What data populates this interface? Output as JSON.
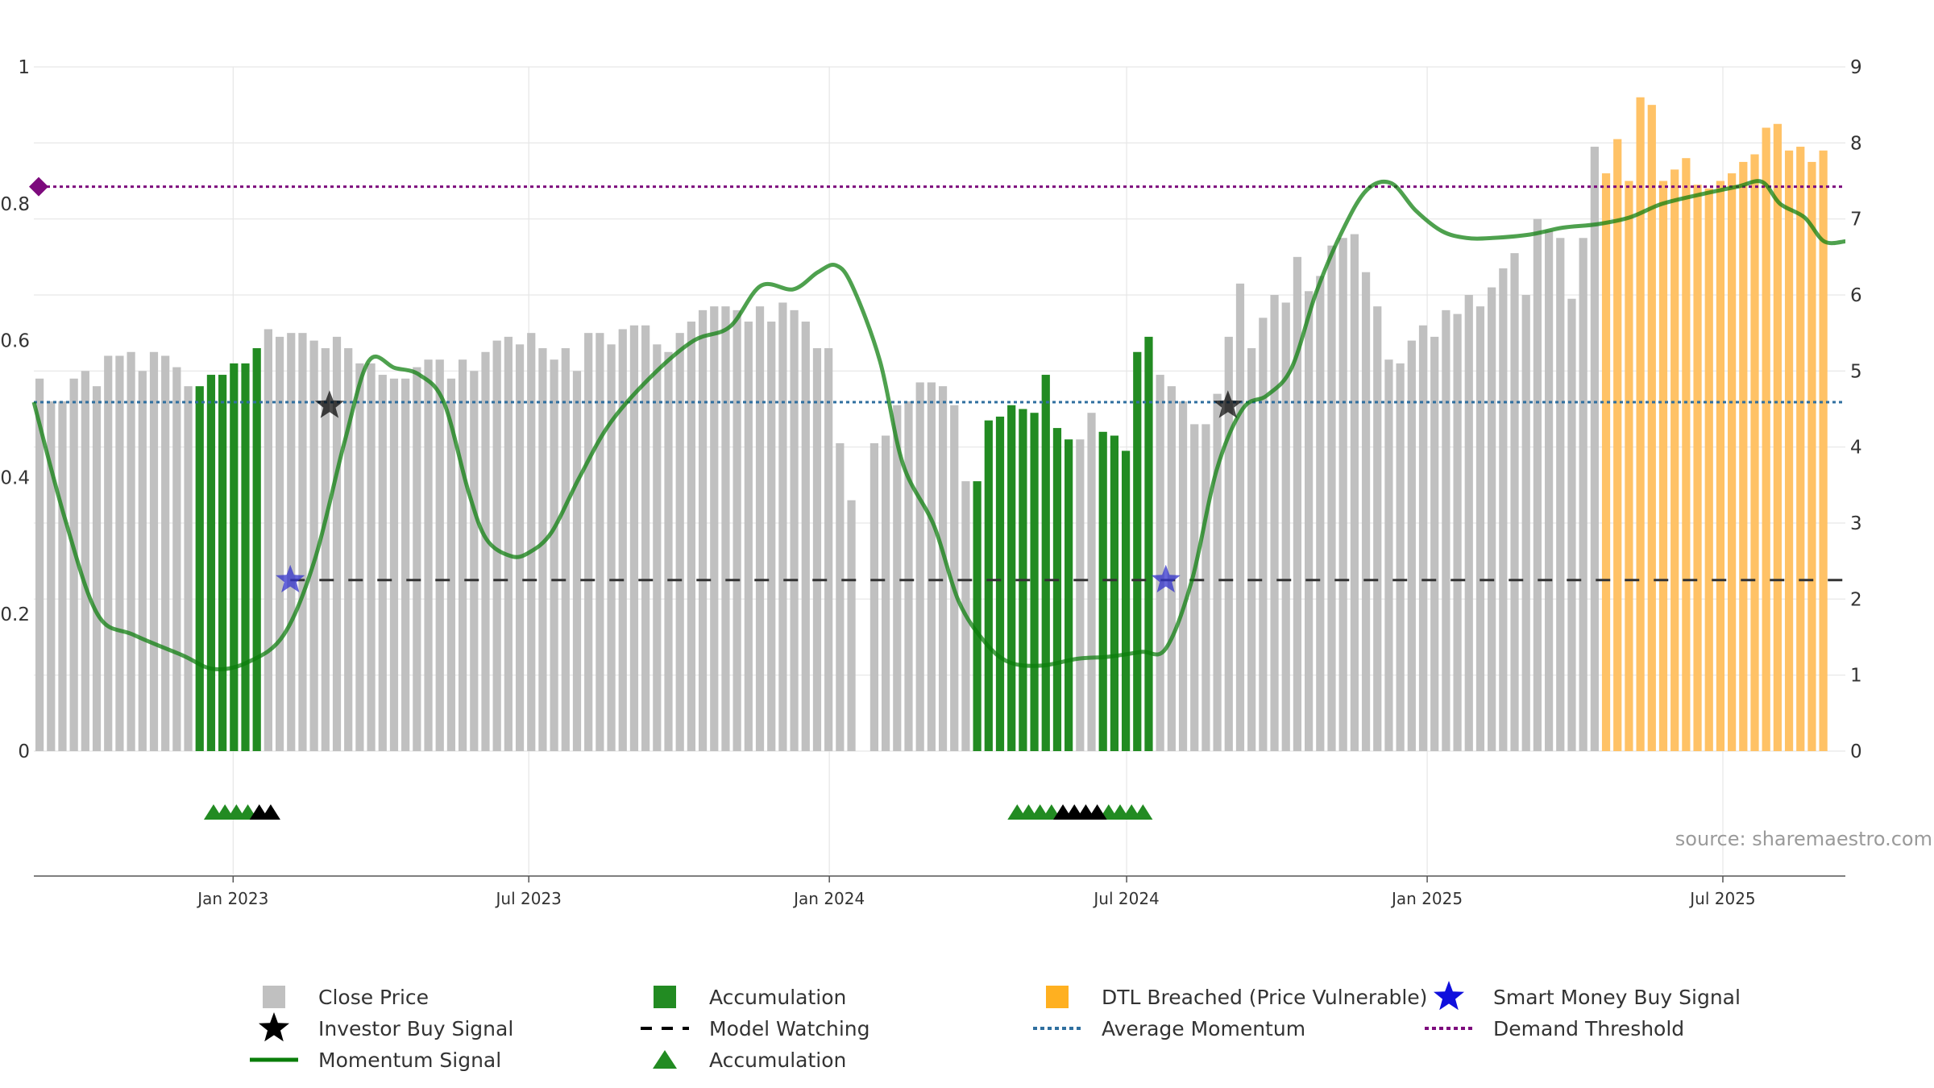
{
  "colors": {
    "close": "#c0c0c0",
    "accum": "#228b22",
    "dtl": "#ffc266",
    "momentum": "#0a7d0a",
    "avg": "#2f6f9f",
    "demand": "#7d0a7d",
    "watch": "#000000",
    "smart": "#3333cc",
    "investor": "#000000",
    "grid": "#e6e6e6"
  },
  "source": "source: sharemaestro.com",
  "chart_data": {
    "type": "bar",
    "left_axis": {
      "ylim": [
        0,
        1
      ],
      "ticks": [
        "0",
        "0.2",
        "0.4",
        "0.6",
        "0.8",
        "1"
      ]
    },
    "right_axis": {
      "ylim": [
        0,
        9
      ],
      "ticks": [
        "0",
        "1",
        "2",
        "3",
        "4",
        "5",
        "6",
        "7",
        "8",
        "9"
      ]
    },
    "x_axis": {
      "start": "2022-09-01",
      "end": "2025-09-14",
      "ticks": [
        {
          "label": "Jan 2023",
          "date": "2023-01-01"
        },
        {
          "label": "Jul 2023",
          "date": "2023-07-01"
        },
        {
          "label": "Jan 2024",
          "date": "2024-01-01"
        },
        {
          "label": "Jul 2024",
          "date": "2024-07-01"
        },
        {
          "label": "Jan 2025",
          "date": "2025-01-01"
        },
        {
          "label": "Jul 2025",
          "date": "2025-07-01"
        }
      ]
    },
    "bar_series": {
      "name": "Close Price",
      "start": "2022-09-01",
      "interval_days": 7,
      "axis": "right",
      "values": [
        4.9,
        4.6,
        4.6,
        4.9,
        5.0,
        4.8,
        5.2,
        5.2,
        5.25,
        5.0,
        5.25,
        5.2,
        5.05,
        4.8,
        4.8,
        4.95,
        4.95,
        5.1,
        5.1,
        5.3,
        5.55,
        5.45,
        5.5,
        5.5,
        5.4,
        5.3,
        5.45,
        5.3,
        5.1,
        5.1,
        4.95,
        4.9,
        4.9,
        5.05,
        5.15,
        5.15,
        4.9,
        5.15,
        5.0,
        5.25,
        5.4,
        5.45,
        5.35,
        5.5,
        5.3,
        5.15,
        5.3,
        5.0,
        5.5,
        5.5,
        5.35,
        5.55,
        5.6,
        5.6,
        5.35,
        5.25,
        5.5,
        5.65,
        5.8,
        5.85,
        5.85,
        5.8,
        5.65,
        5.85,
        5.65,
        5.9,
        5.8,
        5.65,
        5.3,
        5.3,
        4.05,
        3.3,
        0,
        4.05,
        4.15,
        4.55,
        4.6,
        4.85,
        4.85,
        4.8,
        4.55,
        3.55,
        3.55,
        4.35,
        4.4,
        4.55,
        4.5,
        4.45,
        4.95,
        4.25,
        4.1,
        4.1,
        4.45,
        4.2,
        4.15,
        3.95,
        5.25,
        5.45,
        4.95,
        4.8,
        4.6,
        4.3,
        4.3,
        4.7,
        5.45,
        6.15,
        5.3,
        5.7,
        6.0,
        5.9,
        6.5,
        6.05,
        6.25,
        6.65,
        6.75,
        6.8,
        6.3,
        5.85,
        5.15,
        5.1,
        5.4,
        5.6,
        5.45,
        5.8,
        5.75,
        6.0,
        5.85,
        6.1,
        6.35,
        6.55,
        6.0,
        7.0,
        6.85,
        6.75,
        5.95,
        6.75,
        7.95,
        7.6,
        8.05,
        7.5,
        8.6,
        8.5,
        7.5,
        7.65,
        7.8,
        7.45,
        7.4,
        7.5,
        7.6,
        7.75,
        7.85,
        8.2,
        8.25,
        7.9,
        7.95,
        7.75,
        7.9
      ],
      "colors_by_index": {
        "accumulation": [
          [
            14,
            19
          ],
          [
            82,
            90
          ],
          [
            93,
            97
          ]
        ],
        "dtl": [
          [
            137,
            157
          ]
        ]
      }
    },
    "momentum": {
      "name": "Momentum Signal",
      "axis": "left",
      "points": [
        [
          "2022-09-01",
          0.51
        ],
        [
          "2022-09-20",
          0.34
        ],
        [
          "2022-10-10",
          0.2
        ],
        [
          "2022-11-01",
          0.17
        ],
        [
          "2022-12-01",
          0.14
        ],
        [
          "2022-12-20",
          0.12
        ],
        [
          "2023-01-10",
          0.13
        ],
        [
          "2023-02-01",
          0.17
        ],
        [
          "2023-02-20",
          0.28
        ],
        [
          "2023-03-10",
          0.45
        ],
        [
          "2023-03-25",
          0.57
        ],
        [
          "2023-04-10",
          0.56
        ],
        [
          "2023-04-25",
          0.55
        ],
        [
          "2023-05-10",
          0.51
        ],
        [
          "2023-05-25",
          0.38
        ],
        [
          "2023-06-05",
          0.31
        ],
        [
          "2023-06-20",
          0.285
        ],
        [
          "2023-07-01",
          0.29
        ],
        [
          "2023-07-15",
          0.32
        ],
        [
          "2023-08-01",
          0.4
        ],
        [
          "2023-08-20",
          0.48
        ],
        [
          "2023-09-15",
          0.55
        ],
        [
          "2023-10-10",
          0.6
        ],
        [
          "2023-11-01",
          0.62
        ],
        [
          "2023-11-20",
          0.68
        ],
        [
          "2023-12-10",
          0.675
        ],
        [
          "2023-12-25",
          0.7
        ],
        [
          "2024-01-05",
          0.71
        ],
        [
          "2024-01-15",
          0.68
        ],
        [
          "2024-02-01",
          0.57
        ],
        [
          "2024-02-15",
          0.42
        ],
        [
          "2024-03-05",
          0.33
        ],
        [
          "2024-03-20",
          0.22
        ],
        [
          "2024-04-05",
          0.16
        ],
        [
          "2024-04-20",
          0.13
        ],
        [
          "2024-05-10",
          0.125
        ],
        [
          "2024-06-01",
          0.135
        ],
        [
          "2024-06-20",
          0.138
        ],
        [
          "2024-07-10",
          0.145
        ],
        [
          "2024-07-25",
          0.15
        ],
        [
          "2024-08-10",
          0.25
        ],
        [
          "2024-08-25",
          0.41
        ],
        [
          "2024-09-10",
          0.5
        ],
        [
          "2024-09-25",
          0.52
        ],
        [
          "2024-10-10",
          0.56
        ],
        [
          "2024-10-25",
          0.67
        ],
        [
          "2024-11-10",
          0.76
        ],
        [
          "2024-11-25",
          0.82
        ],
        [
          "2024-12-10",
          0.83
        ],
        [
          "2024-12-25",
          0.79
        ],
        [
          "2025-01-10",
          0.76
        ],
        [
          "2025-01-25",
          0.75
        ],
        [
          "2025-02-10",
          0.75
        ],
        [
          "2025-03-05",
          0.755
        ],
        [
          "2025-03-25",
          0.765
        ],
        [
          "2025-04-15",
          0.77
        ],
        [
          "2025-05-05",
          0.78
        ],
        [
          "2025-05-25",
          0.8
        ],
        [
          "2025-06-20",
          0.815
        ],
        [
          "2025-07-10",
          0.825
        ],
        [
          "2025-07-25",
          0.832
        ],
        [
          "2025-08-05",
          0.8
        ],
        [
          "2025-08-20",
          0.78
        ],
        [
          "2025-09-01",
          0.745
        ],
        [
          "2025-09-14",
          0.745
        ]
      ]
    },
    "average_momentum": {
      "name": "Average Momentum",
      "value": 0.51
    },
    "demand_threshold": {
      "name": "Demand Threshold",
      "value": 0.825
    },
    "model_watching": {
      "name": "Model Watching",
      "value": 0.25,
      "from": "2023-02-05"
    },
    "smart_money_signals": [
      {
        "date": "2023-02-05",
        "value": 0.25
      },
      {
        "date": "2024-07-25",
        "value": 0.25
      }
    ],
    "investor_buy_signals": [
      {
        "date": "2023-03-01",
        "value": 0.505
      },
      {
        "date": "2024-09-01",
        "value": 0.505
      }
    ],
    "accumulation_markers": {
      "green": [
        "2022-12-20",
        "2022-12-27",
        "2023-01-03",
        "2023-01-10",
        "2024-04-25",
        "2024-05-02",
        "2024-05-09",
        "2024-05-16",
        "2024-06-20",
        "2024-06-27",
        "2024-07-04",
        "2024-07-11"
      ],
      "black": [
        "2023-01-17",
        "2023-01-24",
        "2024-05-23",
        "2024-05-30",
        "2024-06-06",
        "2024-06-13"
      ]
    },
    "legend": [
      {
        "label": "Close Price",
        "symbol": "square",
        "color": "#c0c0c0"
      },
      {
        "label": "Accumulation",
        "symbol": "square",
        "color": "#228b22"
      },
      {
        "label": "DTL Breached (Price Vulnerable)",
        "symbol": "square",
        "color": "#ffb020"
      },
      {
        "label": "Smart Money Buy Signal",
        "symbol": "star",
        "color": "#1010dd"
      },
      {
        "label": "Investor Buy Signal",
        "symbol": "star",
        "color": "#000000"
      },
      {
        "label": "Model Watching",
        "symbol": "dash",
        "color": "#000000"
      },
      {
        "label": "Average Momentum",
        "symbol": "dot",
        "color": "#2f6f9f"
      },
      {
        "label": "Demand Threshold",
        "symbol": "dot",
        "color": "#7d0a7d"
      },
      {
        "label": "Momentum Signal",
        "symbol": "line",
        "color": "#0a7d0a"
      },
      {
        "label": "Accumulation",
        "symbol": "triangle",
        "color": "#228b22"
      }
    ]
  }
}
